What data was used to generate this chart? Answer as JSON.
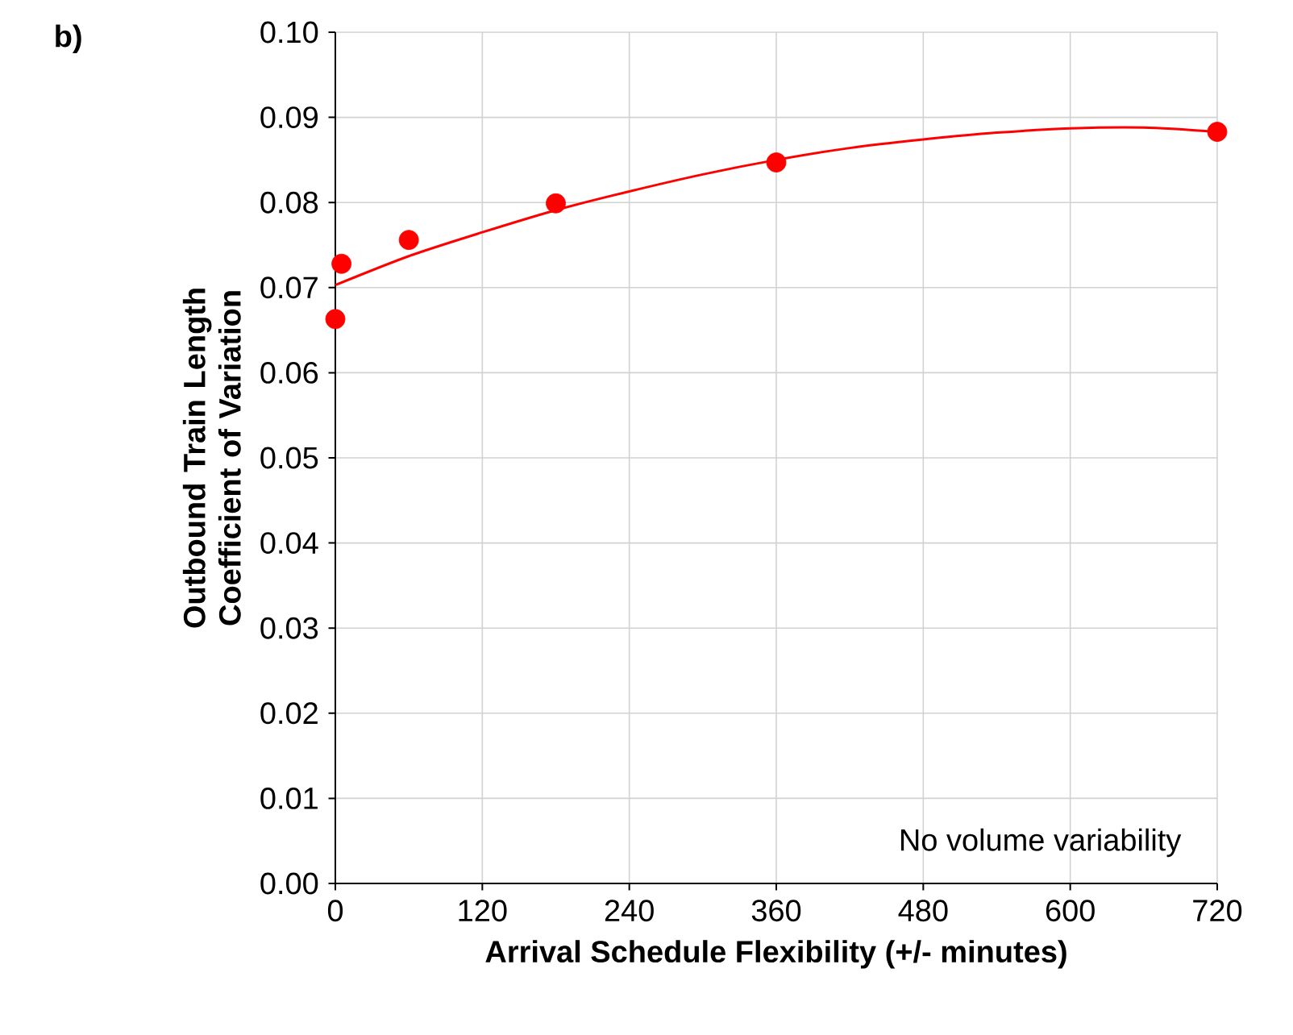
{
  "chart_data": {
    "type": "scatter",
    "xlabel": "Arrival Schedule Flexibility (+/- minutes)",
    "ylabel": "Outbound Train Length Coefficient of Variation",
    "annotations": [
      "b)",
      "No volume variability"
    ],
    "series": [
      {
        "color": "#ff0000",
        "marker": "circle",
        "x": [
          0,
          5,
          60,
          180,
          360,
          720
        ],
        "values": [
          0.0663,
          0.0728,
          0.0756,
          0.0799,
          0.0847,
          0.0883
        ]
      },
      {
        "type": "line",
        "color": "#ff0000",
        "marker": "none",
        "x": [
          0,
          60,
          120,
          180,
          240,
          300,
          360,
          420,
          480,
          540,
          600,
          660,
          720
        ],
        "values": [
          0.0703,
          0.0737,
          0.0765,
          0.0791,
          0.0813,
          0.0833,
          0.085,
          0.0864,
          0.0874,
          0.0882,
          0.0887,
          0.0888,
          0.0883
        ]
      }
    ],
    "xlim": [
      0,
      720
    ],
    "xticks": [
      0,
      120,
      240,
      360,
      480,
      600,
      720
    ],
    "ylim": [
      0,
      0.1
    ],
    "yticks": [
      {
        "value": 0,
        "label": "0.00"
      },
      {
        "value": 0.01,
        "label": "0.01"
      },
      {
        "value": 0.02,
        "label": "0.02"
      },
      {
        "value": 0.03,
        "label": "0.03"
      },
      {
        "value": 0.04,
        "label": "0.04"
      },
      {
        "value": 0.05,
        "label": "0.05"
      },
      {
        "value": 0.06,
        "label": "0.06"
      },
      {
        "value": 0.07,
        "label": "0.07"
      },
      {
        "value": 0.08,
        "label": "0.08"
      },
      {
        "value": 0.09,
        "label": "0.09"
      },
      {
        "value": 0.1,
        "label": "0.10"
      }
    ],
    "grid": true
  }
}
